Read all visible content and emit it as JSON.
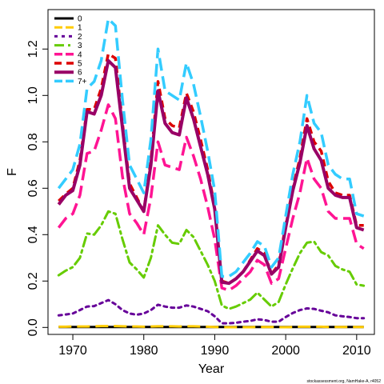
{
  "chart_data": {
    "type": "line",
    "xlabel": "Year",
    "ylabel": "F",
    "xlim": [
      1966.5,
      2012.5
    ],
    "ylim": [
      -0.03,
      1.37
    ],
    "x_ticks": [
      1970,
      1980,
      1990,
      2000,
      2010
    ],
    "x_tick_labels": [
      "1970",
      "1980",
      "1990",
      "2000",
      "2010"
    ],
    "y_ticks": [
      0.0,
      0.2,
      0.4,
      0.6,
      0.8,
      1.0,
      1.2
    ],
    "y_tick_labels": [
      "0.0",
      "0.2",
      "0.4",
      "0.6",
      "0.8",
      "1.0",
      "1.2"
    ],
    "legend_position": "top-left",
    "x": [
      1968,
      1969,
      1970,
      1971,
      1972,
      1973,
      1974,
      1975,
      1976,
      1977,
      1978,
      1979,
      1980,
      1981,
      1982,
      1983,
      1984,
      1985,
      1986,
      1987,
      1988,
      1989,
      1990,
      1991,
      1992,
      1993,
      1994,
      1995,
      1996,
      1997,
      1998,
      1999,
      2000,
      2001,
      2002,
      2003,
      2004,
      2005,
      2006,
      2007,
      2008,
      2009,
      2010,
      2011
    ],
    "series": [
      {
        "name": "0",
        "color": "#000000",
        "dash": "solid",
        "width": 3,
        "values": [
          0.002,
          0.002,
          0.002,
          0.002,
          0.002,
          0.002,
          0.002,
          0.002,
          0.002,
          0.002,
          0.002,
          0.002,
          0.002,
          0.002,
          0.002,
          0.002,
          0.002,
          0.002,
          0.002,
          0.002,
          0.002,
          0.002,
          0.002,
          0.002,
          0.002,
          0.002,
          0.002,
          0.002,
          0.002,
          0.002,
          0.002,
          0.002,
          0.002,
          0.002,
          0.002,
          0.002,
          0.002,
          0.002,
          0.002,
          0.002,
          0.002,
          0.002,
          0.002,
          0.002
        ]
      },
      {
        "name": "1",
        "color": "#ffcc00",
        "dash": "long",
        "width": 3,
        "values": [
          0.003,
          0.003,
          0.004,
          0.004,
          0.004,
          0.005,
          0.006,
          0.006,
          0.006,
          0.005,
          0.004,
          0.004,
          0.003,
          0.004,
          0.005,
          0.005,
          0.005,
          0.004,
          0.005,
          0.005,
          0.004,
          0.003,
          0.002,
          0.001,
          0.001,
          0.001,
          0.001,
          0.001,
          0.002,
          0.002,
          0.002,
          0.001,
          0.001,
          0.002,
          0.003,
          0.003,
          0.003,
          0.003,
          0.002,
          0.002,
          0.002,
          0.002,
          0.002,
          0.002
        ]
      },
      {
        "name": "2",
        "color": "#660099",
        "dash": "dotted",
        "width": 3,
        "values": [
          0.052,
          0.056,
          0.06,
          0.075,
          0.09,
          0.092,
          0.105,
          0.118,
          0.1,
          0.075,
          0.06,
          0.055,
          0.06,
          0.075,
          0.098,
          0.09,
          0.085,
          0.085,
          0.095,
          0.09,
          0.08,
          0.07,
          0.048,
          0.018,
          0.018,
          0.02,
          0.025,
          0.028,
          0.035,
          0.032,
          0.025,
          0.025,
          0.045,
          0.062,
          0.075,
          0.082,
          0.08,
          0.072,
          0.065,
          0.052,
          0.048,
          0.045,
          0.04,
          0.04
        ]
      },
      {
        "name": "3",
        "color": "#66cc00",
        "dash": "dashdot",
        "width": 3,
        "values": [
          0.225,
          0.245,
          0.26,
          0.3,
          0.405,
          0.4,
          0.44,
          0.5,
          0.49,
          0.38,
          0.28,
          0.25,
          0.215,
          0.3,
          0.44,
          0.4,
          0.365,
          0.36,
          0.42,
          0.39,
          0.33,
          0.27,
          0.2,
          0.095,
          0.08,
          0.09,
          0.105,
          0.12,
          0.15,
          0.12,
          0.09,
          0.11,
          0.185,
          0.255,
          0.32,
          0.365,
          0.37,
          0.325,
          0.31,
          0.265,
          0.25,
          0.24,
          0.185,
          0.18
        ]
      },
      {
        "name": "4",
        "color": "#ff1493",
        "dash": "long",
        "width": 3.5,
        "values": [
          0.43,
          0.47,
          0.49,
          0.57,
          0.75,
          0.76,
          0.85,
          0.96,
          0.9,
          0.65,
          0.49,
          0.45,
          0.4,
          0.56,
          0.8,
          0.7,
          0.69,
          0.68,
          0.82,
          0.74,
          0.64,
          0.52,
          0.38,
          0.17,
          0.16,
          0.18,
          0.21,
          0.24,
          0.29,
          0.27,
          0.19,
          0.21,
          0.34,
          0.47,
          0.58,
          0.73,
          0.64,
          0.6,
          0.5,
          0.47,
          0.47,
          0.47,
          0.36,
          0.34
        ]
      },
      {
        "name": "5",
        "color": "#dd0000",
        "dash": "dash",
        "width": 3.5,
        "values": [
          0.545,
          0.575,
          0.6,
          0.72,
          0.94,
          0.94,
          1.03,
          1.18,
          1.16,
          0.88,
          0.62,
          0.56,
          0.5,
          0.72,
          1.06,
          0.9,
          0.87,
          0.86,
          1.01,
          0.93,
          0.81,
          0.68,
          0.52,
          0.2,
          0.19,
          0.21,
          0.24,
          0.29,
          0.34,
          0.32,
          0.23,
          0.27,
          0.44,
          0.6,
          0.73,
          0.9,
          0.8,
          0.76,
          0.63,
          0.58,
          0.57,
          0.57,
          0.44,
          0.44
        ]
      },
      {
        "name": "6",
        "color": "#990066",
        "dash": "solid",
        "width": 4,
        "values": [
          0.53,
          0.57,
          0.59,
          0.7,
          0.93,
          0.92,
          1.0,
          1.15,
          1.12,
          0.86,
          0.6,
          0.55,
          0.5,
          0.7,
          1.02,
          0.88,
          0.84,
          0.83,
          0.99,
          0.9,
          0.78,
          0.66,
          0.51,
          0.195,
          0.19,
          0.21,
          0.24,
          0.285,
          0.33,
          0.31,
          0.23,
          0.26,
          0.43,
          0.59,
          0.71,
          0.87,
          0.77,
          0.72,
          0.6,
          0.57,
          0.56,
          0.56,
          0.43,
          0.42
        ]
      },
      {
        "name": "7+",
        "color": "#33ccff",
        "dash": "long",
        "width": 3.5,
        "values": [
          0.6,
          0.64,
          0.68,
          0.79,
          1.03,
          1.06,
          1.15,
          1.33,
          1.3,
          0.98,
          0.7,
          0.64,
          0.58,
          0.81,
          1.2,
          1.02,
          1.0,
          0.98,
          1.14,
          1.05,
          0.91,
          0.76,
          0.59,
          0.22,
          0.22,
          0.24,
          0.28,
          0.32,
          0.37,
          0.35,
          0.26,
          0.3,
          0.48,
          0.66,
          0.8,
          1.0,
          0.88,
          0.84,
          0.7,
          0.66,
          0.64,
          0.64,
          0.49,
          0.48
        ]
      }
    ]
  },
  "footer_text": "stockassessment.org, NamHake-A, r4052"
}
